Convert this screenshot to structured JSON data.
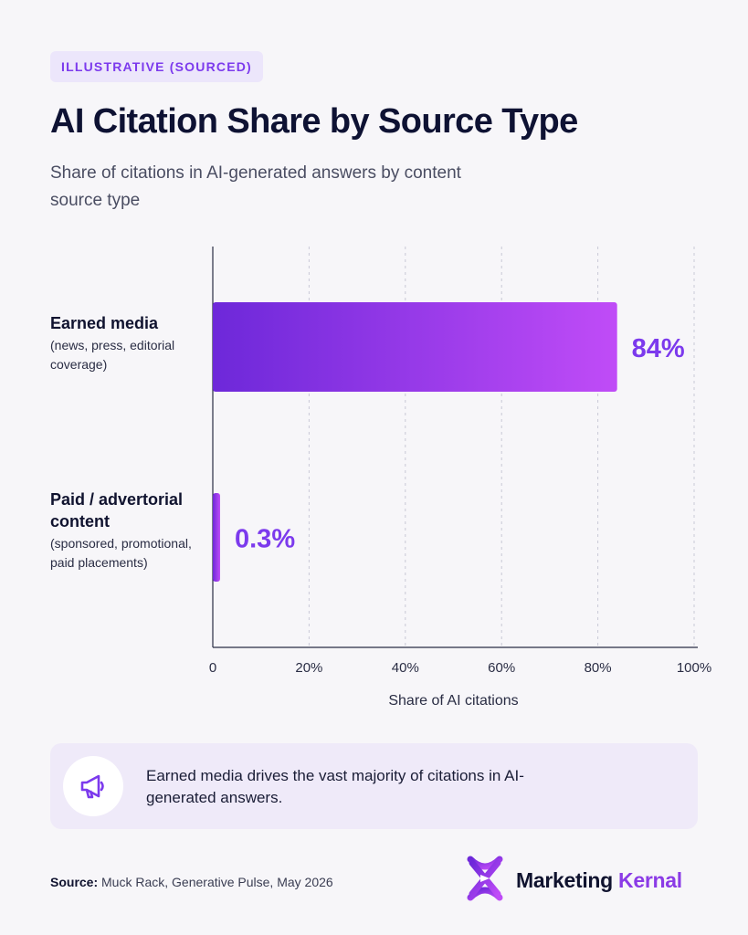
{
  "tag": "ILLUSTRATIVE (SOURCED)",
  "title": "AI Citation Share by Source Type",
  "subtitle": "Share of citations in AI-generated answers by content source type",
  "colors": {
    "bar_start": "#6d28d9",
    "bar_end": "#c04cf7",
    "value_label": "#7c3aed",
    "accent": "#8b3be6"
  },
  "chart_data": {
    "type": "bar",
    "orientation": "horizontal",
    "categories": [
      {
        "name": "Earned media",
        "description": "(news, press, editorial coverage)"
      },
      {
        "name": "Paid / advertorial content",
        "description": "(sponsored, promotional, paid placements)"
      }
    ],
    "values": [
      84,
      0.3
    ],
    "value_labels": [
      "84%",
      "0.3%"
    ],
    "xlabel": "Share of AI citations",
    "xlim": [
      0,
      100
    ],
    "xticks": [
      "0",
      "20%",
      "40%",
      "60%",
      "80%",
      "100%"
    ],
    "grid": "vertical dashed",
    "legend": "none"
  },
  "callout": {
    "icon": "megaphone-icon",
    "text": "Earned media drives the vast majority of citations in AI-generated answers."
  },
  "source": {
    "label": "Source:",
    "text": "Muck Rack, Generative Pulse, May 2026"
  },
  "brand": {
    "name_main": "Marketing",
    "name_accent": "Kernal",
    "icon": "marketing-kernal-logo-icon"
  }
}
